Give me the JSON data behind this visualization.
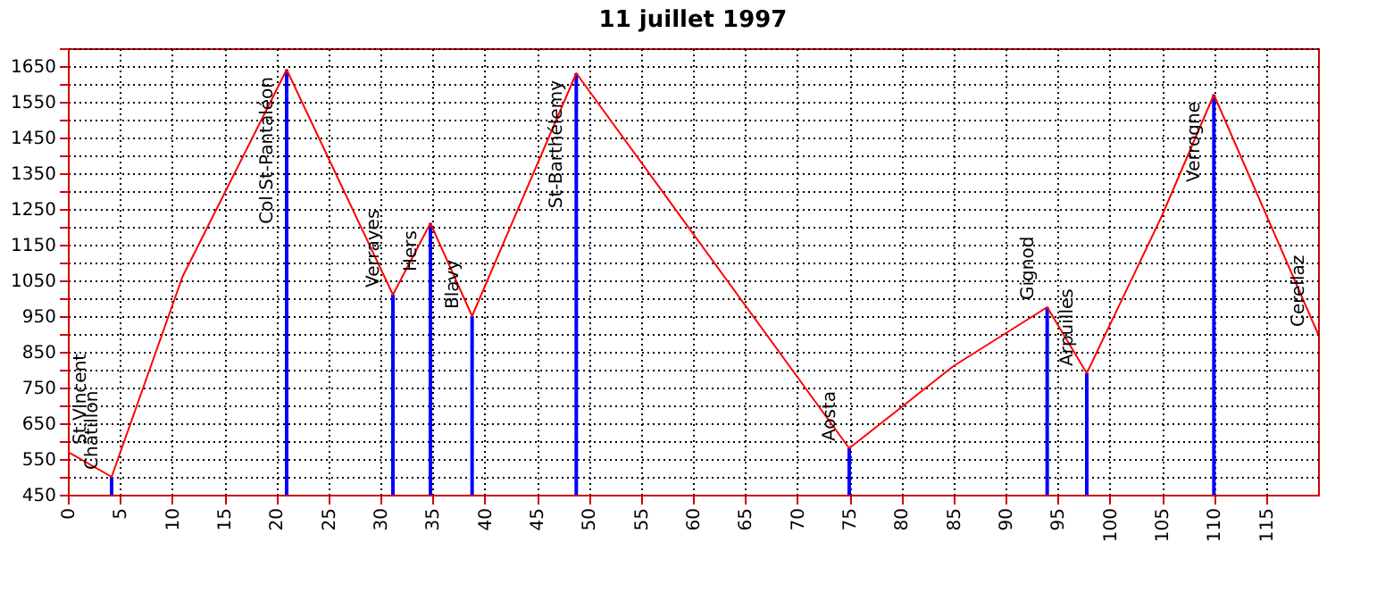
{
  "chart_data": {
    "type": "line",
    "title": "11 juillet 1997",
    "xlim": [
      0,
      120
    ],
    "ylim": [
      450,
      1700
    ],
    "xticks": [
      0,
      5,
      10,
      15,
      20,
      25,
      30,
      35,
      40,
      45,
      50,
      55,
      60,
      65,
      70,
      75,
      80,
      85,
      90,
      95,
      100,
      105,
      110,
      115
    ],
    "yticks": [
      450,
      {
        "value": 500,
        "label": null
      },
      550,
      {
        "value": 600,
        "label": null
      },
      650,
      {
        "value": 700,
        "label": null
      },
      750,
      {
        "value": 800,
        "label": null
      },
      850,
      {
        "value": 900,
        "label": null
      },
      950,
      {
        "value": 1000,
        "label": null
      },
      1050,
      {
        "value": 1100,
        "label": null
      },
      1150,
      {
        "value": 1200,
        "label": null
      },
      1250,
      {
        "value": 1300,
        "label": null
      },
      1350,
      {
        "value": 1400,
        "label": null
      },
      1450,
      {
        "value": 1500,
        "label": null
      },
      1550,
      {
        "value": 1600,
        "label": null
      },
      1650,
      {
        "value": 1700,
        "label": null
      }
    ],
    "grid": true,
    "legend": false,
    "marker": "none",
    "line_style": "solid",
    "series": [
      {
        "color": "#ff0000",
        "x": [
          0,
          4.2,
          11,
          21,
          31.2,
          34.8,
          38.8,
          48.8,
          75,
          85,
          94,
          97.8,
          105,
          110,
          120
        ],
        "values": [
          570,
          500,
          1060,
          1640,
          1010,
          1210,
          950,
          1630,
          580,
          810,
          975,
          790,
          1230,
          1570,
          900
        ]
      },
      {
        "type": "bar",
        "color": "#0000ff",
        "x": [
          4.2,
          21,
          31.2,
          34.8,
          38.8,
          48.8,
          75,
          94,
          97.8,
          110
        ],
        "values": [
          500,
          1640,
          1010,
          1210,
          950,
          1630,
          580,
          975,
          790,
          1570
        ]
      }
    ],
    "annotations": [
      {
        "text": "St Vincent",
        "x": 0,
        "y": 570
      },
      {
        "text": "Châtillon",
        "x": 4.2,
        "y": 500
      },
      {
        "text": "Col St-Pantaléon",
        "x": 21,
        "y": 1640
      },
      {
        "text": "Verrayes",
        "x": 31.2,
        "y": 1010
      },
      {
        "text": "Hers",
        "x": 34.8,
        "y": 1210
      },
      {
        "text": "Blavy",
        "x": 38.8,
        "y": 950
      },
      {
        "text": "St-Barthélemy",
        "x": 48.8,
        "y": 1630
      },
      {
        "text": "Aosta",
        "x": 75,
        "y": 580
      },
      {
        "text": "Gignod",
        "x": 94,
        "y": 975
      },
      {
        "text": "Arpuilles",
        "x": 97.8,
        "y": 790
      },
      {
        "text": "Verrogne",
        "x": 110,
        "y": 1570
      },
      {
        "text": "Cerellaz",
        "x": 120,
        "y": 900
      }
    ]
  }
}
